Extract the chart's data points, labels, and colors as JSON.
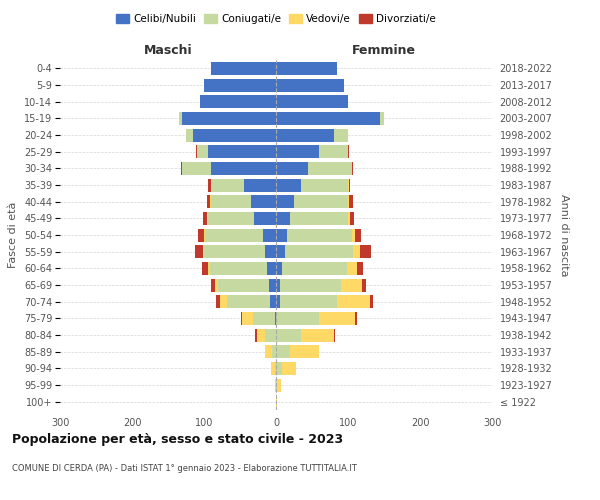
{
  "age_groups": [
    "100+",
    "95-99",
    "90-94",
    "85-89",
    "80-84",
    "75-79",
    "70-74",
    "65-69",
    "60-64",
    "55-59",
    "50-54",
    "45-49",
    "40-44",
    "35-39",
    "30-34",
    "25-29",
    "20-24",
    "15-19",
    "10-14",
    "5-9",
    "0-4"
  ],
  "birth_years": [
    "≤ 1922",
    "1923-1927",
    "1928-1932",
    "1933-1937",
    "1938-1942",
    "1943-1947",
    "1948-1952",
    "1953-1957",
    "1958-1962",
    "1963-1967",
    "1968-1972",
    "1973-1977",
    "1978-1982",
    "1983-1987",
    "1988-1992",
    "1993-1997",
    "1998-2002",
    "2003-2007",
    "2008-2012",
    "2013-2017",
    "2018-2022"
  ],
  "maschi": {
    "celibi": [
      0,
      0,
      0,
      0,
      0,
      2,
      8,
      10,
      12,
      15,
      18,
      30,
      35,
      45,
      90,
      95,
      115,
      130,
      105,
      100,
      90
    ],
    "coniugati": [
      0,
      0,
      2,
      5,
      15,
      30,
      60,
      70,
      80,
      85,
      80,
      65,
      55,
      45,
      40,
      15,
      10,
      5,
      0,
      0,
      0
    ],
    "vedovi": [
      0,
      2,
      5,
      10,
      12,
      15,
      10,
      5,
      3,
      2,
      2,
      1,
      1,
      0,
      0,
      0,
      0,
      0,
      0,
      0,
      0
    ],
    "divorziati": [
      0,
      0,
      0,
      0,
      2,
      2,
      5,
      5,
      8,
      10,
      8,
      5,
      5,
      5,
      2,
      1,
      0,
      0,
      0,
      0,
      0
    ]
  },
  "femmine": {
    "nubili": [
      0,
      0,
      0,
      0,
      0,
      0,
      5,
      5,
      8,
      12,
      15,
      20,
      25,
      35,
      45,
      60,
      80,
      145,
      100,
      95,
      85
    ],
    "coniugate": [
      0,
      2,
      8,
      20,
      35,
      60,
      80,
      85,
      90,
      95,
      90,
      80,
      75,
      65,
      60,
      40,
      20,
      5,
      0,
      0,
      0
    ],
    "vedove": [
      1,
      5,
      20,
      40,
      45,
      50,
      45,
      30,
      15,
      10,
      5,
      3,
      2,
      1,
      0,
      0,
      0,
      0,
      0,
      0,
      0
    ],
    "divorziate": [
      0,
      0,
      0,
      0,
      2,
      2,
      5,
      5,
      8,
      15,
      8,
      5,
      5,
      2,
      2,
      1,
      0,
      0,
      0,
      0,
      0
    ]
  },
  "colors": {
    "celibi": "#4472C4",
    "coniugati": "#C5D9A0",
    "vedovi": "#FFD966",
    "divorziati": "#C0392B"
  },
  "xlim": 300,
  "title": "Popolazione per età, sesso e stato civile - 2023",
  "subtitle": "COMUNE DI CERDA (PA) - Dati ISTAT 1° gennaio 2023 - Elaborazione TUTTITALIA.IT",
  "ylabel_left": "Fasce di età",
  "ylabel_right": "Anni di nascita",
  "xlabel_maschi": "Maschi",
  "xlabel_femmine": "Femmine",
  "bg_color": "#FFFFFF",
  "grid_color": "#CCCCCC"
}
